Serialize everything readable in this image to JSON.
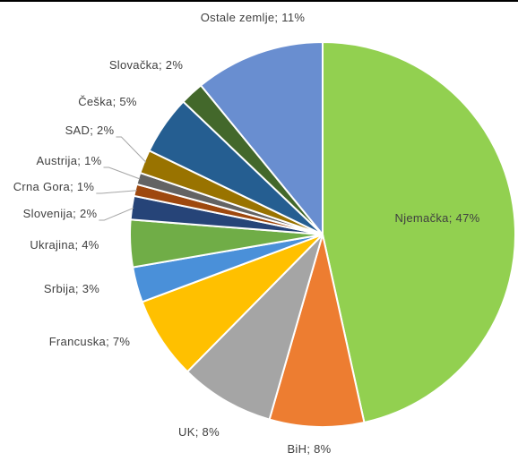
{
  "chart_data": {
    "type": "pie",
    "categories": [
      "Njemačka",
      "BiH",
      "UK",
      "Francuska",
      "Srbija",
      "Ukrajina",
      "Slovenija",
      "Crna Gora",
      "Austrija",
      "SAD",
      "Češka",
      "Slovačka",
      "Ostale zemlje"
    ],
    "values": [
      47,
      8,
      8,
      7,
      3,
      4,
      2,
      1,
      1,
      2,
      5,
      2,
      11
    ],
    "value_labels": [
      "47%",
      "8%",
      "8%",
      "7%",
      "3%",
      "4%",
      "2%",
      "1%",
      "1%",
      "2%",
      "5%",
      "2%",
      "11%"
    ],
    "label_separator": "; ",
    "colors": [
      "#92d050",
      "#ed7d31",
      "#a5a5a5",
      "#ffc000",
      "#4a90d9",
      "#70ad47",
      "#264478",
      "#9e480e",
      "#636363",
      "#997300",
      "#255e91",
      "#43682b",
      "#698ed0"
    ]
  }
}
